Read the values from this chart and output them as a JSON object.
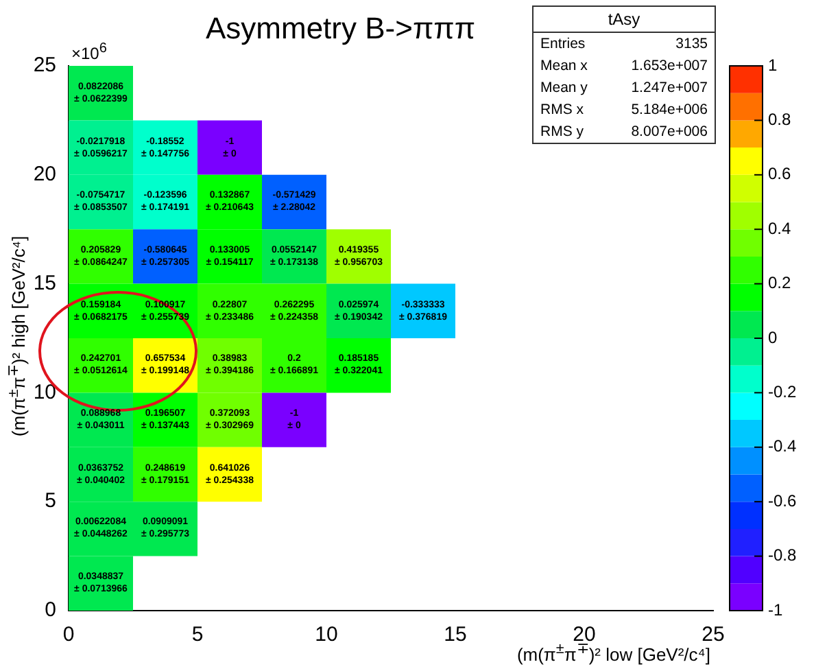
{
  "chart_data": {
    "type": "heatmap",
    "title": "Asymmetry B->πππ",
    "xlabel": "(m(π$^{±}$π$^{∓}$)² low [GeV²/c⁴]",
    "ylabel": "(m(π$^{±}$π$^{∓}$)² high [GeV²/c⁴]",
    "xlim": [
      0,
      25
    ],
    "xticks": [
      0,
      5,
      10,
      15,
      20,
      25
    ],
    "ylim": [
      0,
      25
    ],
    "yticks": [
      0,
      5,
      10,
      15,
      20,
      25
    ],
    "cells": [
      [
        0.0822086,
        null,
        null,
        null,
        null,
        null,
        null,
        null,
        null,
        null
      ],
      [
        -0.0217918,
        -0.18552,
        -1,
        null,
        null,
        null,
        null,
        null,
        null,
        null
      ],
      [
        -0.0754717,
        -0.123596,
        0.132867,
        -0.571429,
        null,
        null,
        null,
        null,
        null,
        null
      ],
      [
        0.205829,
        -0.580645,
        0.133005,
        0.0552147,
        0.419355,
        null,
        null,
        null,
        null,
        null
      ],
      [
        0.159184,
        0.100917,
        0.22807,
        0.262295,
        0.025974,
        -0.333333,
        null,
        null,
        null,
        null
      ],
      [
        0.242701,
        0.657534,
        0.38983,
        0.2,
        0.185185,
        null,
        null,
        null,
        null,
        null
      ],
      [
        0.088968,
        0.196507,
        0.372093,
        -1,
        null,
        null,
        null,
        null,
        null,
        null
      ],
      [
        0.0363752,
        0.248619,
        0.641026,
        null,
        null,
        null,
        null,
        null,
        null,
        null
      ],
      [
        0.00622084,
        0.0909091,
        null,
        null,
        null,
        null,
        null,
        null,
        null,
        null
      ],
      [
        0.0348837,
        null,
        null,
        null,
        null,
        null,
        null,
        null,
        null,
        null
      ]
    ],
    "cell_labels": [
      [
        "0.0822086\n± 0.0622399",
        null,
        null,
        null,
        null,
        null,
        null,
        null,
        null,
        null
      ],
      [
        "-0.0217918\n± 0.0596217",
        "-0.18552\n± 0.147756",
        "-1\n± 0",
        null,
        null,
        null,
        null,
        null,
        null,
        null
      ],
      [
        "-0.0754717\n± 0.0853507",
        "-0.123596\n± 0.174191",
        "0.132867\n± 0.210643",
        "-0.571429\n± 2.28042",
        null,
        null,
        null,
        null,
        null,
        null
      ],
      [
        "0.205829\n± 0.0864247",
        "-0.580645\n± 0.257305",
        "0.133005\n± 0.154117",
        "0.0552147\n± 0.173138",
        "0.419355\n± 0.956703",
        null,
        null,
        null,
        null,
        null
      ],
      [
        "0.159184\n± 0.0682175",
        "0.100917\n± 0.255739",
        "0.22807\n± 0.233486",
        "0.262295\n± 0.224358",
        "0.025974\n± 0.190342",
        "-0.333333\n± 0.376819",
        null,
        null,
        null,
        null
      ],
      [
        "0.242701\n± 0.0512614",
        "0.657534\n± 0.199148",
        "0.38983\n± 0.394186",
        "0.2\n± 0.166891",
        "0.185185\n± 0.322041",
        null,
        null,
        null,
        null,
        null
      ],
      [
        "0.088968\n± 0.043011",
        "0.196507\n± 0.137443",
        "0.372093\n± 0.302969",
        "-1\n± 0",
        null,
        null,
        null,
        null,
        null,
        null
      ],
      [
        "0.0363752\n± 0.040402",
        "0.248619\n± 0.179151",
        "0.641026\n± 0.254338",
        null,
        null,
        null,
        null,
        null,
        null,
        null
      ],
      [
        "0.00622084\n± 0.0448262",
        "0.0909091\n± 0.295773",
        null,
        null,
        null,
        null,
        null,
        null,
        null,
        null
      ],
      [
        "0.0348837\n± 0.0713966",
        null,
        null,
        null,
        null,
        null,
        null,
        null,
        null,
        null
      ]
    ],
    "clim": [
      -1,
      1
    ],
    "cticks": [
      -1,
      -0.8,
      -0.6,
      -0.4,
      -0.2,
      0,
      0.2,
      0.4,
      0.6,
      0.8,
      1
    ],
    "annotations": [
      "×10$^{6}$",
      "tAsy",
      "Entries 3135",
      "Mean x 1.653e+007",
      "Mean y 1.247e+007",
      "RMS x 5.184e+006",
      "RMS y 8.007e+006"
    ]
  }
}
